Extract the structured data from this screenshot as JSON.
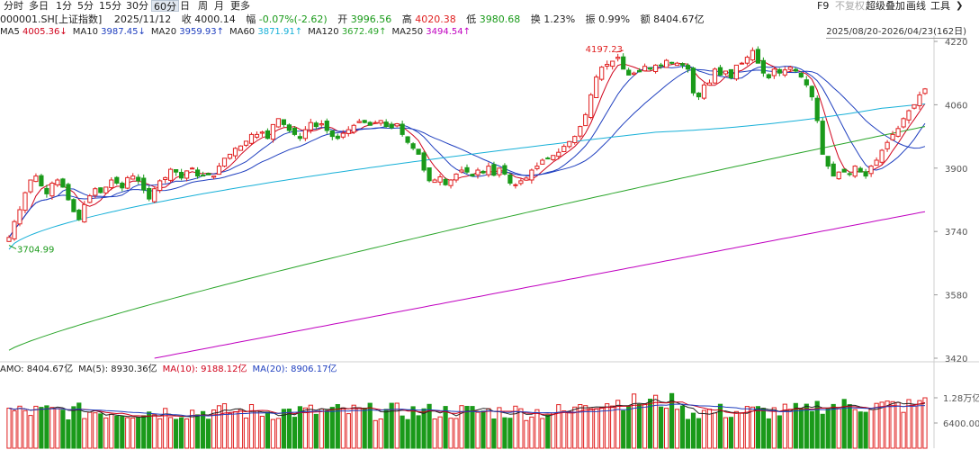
{
  "toolbar": {
    "periods": [
      "分时",
      "多日",
      "1分",
      "5分",
      "15分",
      "30分",
      "60分",
      "日",
      "周",
      "月",
      "更多"
    ],
    "active_period": "60分",
    "right_items": [
      "F9",
      "不复权",
      "超级叠加",
      "画线",
      "工具"
    ],
    "disabled_item": "不复权",
    "more_icon": "chevron-right-icon"
  },
  "info": {
    "code_name": "000001.SH[上证指数]",
    "date": "2025/11/12",
    "close_label": "收",
    "close": "4000.14",
    "change_label": "幅",
    "change": "-0.07%(-2.62)",
    "open_label": "开",
    "open": "3996.56",
    "high_label": "高",
    "high": "4020.38",
    "low_label": "低",
    "low": "3980.68",
    "turnover_label": "换",
    "turnover": "1.23%",
    "amplitude_label": "振",
    "amplitude": "0.99%",
    "amount_label": "额",
    "amount": "8404.67亿"
  },
  "ma": [
    {
      "label": "MA5",
      "value": "4005.36",
      "arrow": "↓",
      "color": "#d0021b"
    },
    {
      "label": "MA10",
      "value": "3987.45",
      "arrow": "↓",
      "color": "#1f3fbf"
    },
    {
      "label": "MA20",
      "value": "3959.93",
      "arrow": "↑",
      "color": "#1f3fbf"
    },
    {
      "label": "MA60",
      "value": "3871.91",
      "arrow": "↑",
      "color": "#17b0d8"
    },
    {
      "label": "MA120",
      "value": "3672.49",
      "arrow": "↑",
      "color": "#2aa52a"
    },
    {
      "label": "MA250",
      "value": "3494.54",
      "arrow": "↑",
      "color": "#c000c0"
    }
  ],
  "range": "2025/08/20-2026/04/23(162日)",
  "amo": {
    "items": [
      {
        "label": "AMO:",
        "value": "8404.67亿",
        "color": "#222222"
      },
      {
        "label": "MA(5):",
        "value": "8930.36亿",
        "color": "#222222"
      },
      {
        "label": "MA(10):",
        "value": "9188.12亿",
        "color": "#d0021b"
      },
      {
        "label": "MA(20):",
        "value": "8906.17亿",
        "color": "#1f3fbf"
      }
    ]
  },
  "colors": {
    "up": "#e02020",
    "down": "#1a9a1a",
    "ma5": "#d0021b",
    "ma10": "#1f3fbf",
    "ma20": "#1f3fbf",
    "ma60": "#17b0d8",
    "ma120": "#2aa52a",
    "ma250": "#c000c0"
  },
  "chart_data": {
    "type": "candlestick",
    "price_axis": {
      "ticks": [
        4220,
        4060,
        3900,
        3740,
        3580,
        3420
      ],
      "range": [
        3420,
        4220
      ]
    },
    "volume_axis": {
      "tick_labels": [
        "1.28万亿",
        "6400.00亿"
      ],
      "tick_values": [
        12800,
        6400
      ],
      "unit": "亿"
    },
    "annotations": [
      {
        "text": "4197.23",
        "kind": "high",
        "value": 4197.23
      },
      {
        "text": "3704.99",
        "kind": "low",
        "value": 3704.99
      }
    ],
    "series_close": [
      3725,
      3765,
      3795,
      3838,
      3870,
      3880,
      3855,
      3835,
      3862,
      3870,
      3852,
      3820,
      3790,
      3770,
      3808,
      3830,
      3848,
      3838,
      3852,
      3870,
      3862,
      3850,
      3876,
      3880,
      3868,
      3845,
      3822,
      3848,
      3868,
      3876,
      3897,
      3890,
      3875,
      3893,
      3900,
      3880,
      3882,
      3883,
      3880,
      3905,
      3925,
      3935,
      3950,
      3956,
      3968,
      3985,
      3985,
      3991,
      3975,
      4010,
      4025,
      4010,
      3995,
      3985,
      3975,
      3997,
      4015,
      4005,
      4012,
      3995,
      3980,
      3975,
      3988,
      3997,
      4008,
      4018,
      4015,
      4008,
      4015,
      4020,
      4005,
      4002,
      4012,
      3985,
      3965,
      3950,
      3935,
      3895,
      3868,
      3870,
      3878,
      3858,
      3870,
      3885,
      3895,
      3890,
      3880,
      3895,
      3888,
      3905,
      3882,
      3900,
      3885,
      3862,
      3858,
      3868,
      3875,
      3895,
      3905,
      3920,
      3925,
      3932,
      3940,
      3955,
      3967,
      3980,
      4005,
      4035,
      4085,
      4130,
      4155,
      4162,
      4170,
      4180,
      4150,
      4135,
      4140,
      4143,
      4157,
      4150,
      4160,
      4160,
      4172,
      4165,
      4165,
      4160,
      4150,
      4090,
      4080,
      4110,
      4115,
      4150,
      4135,
      4145,
      4128,
      4160,
      4165,
      4180,
      4197,
      4165,
      4140,
      4128,
      4150,
      4140,
      4148,
      4155,
      4145,
      4130,
      4110,
      4080,
      4020,
      3935,
      3905,
      3880,
      3890,
      3890,
      3885,
      3905,
      3890,
      3880,
      3905,
      3920,
      3945,
      3965,
      3985,
      4000,
      4025,
      4045,
      4060,
      4085,
      4100
    ]
  }
}
